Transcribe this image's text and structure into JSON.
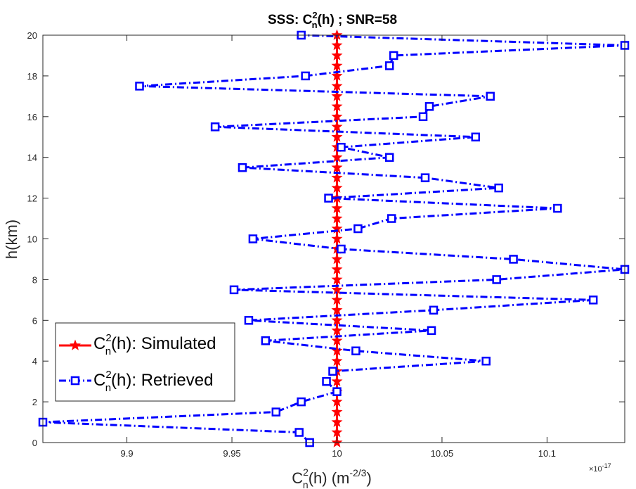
{
  "chart_data": {
    "type": "line",
    "title": {
      "prefix": "SSS: C",
      "sup": "2",
      "sub": "n",
      "suffix": "(h)  ; SNR=58"
    },
    "xlabel": {
      "base": "C",
      "sup": "2",
      "sub": "n",
      "rest": "(h) (m",
      "exp": "-2/3",
      "close": ")"
    },
    "ylabel": "h(km)",
    "x_multiplier": {
      "prefix": "×10",
      "exp": "-17"
    },
    "xlim": [
      9.86,
      10.137
    ],
    "ylim": [
      0,
      20
    ],
    "x_ticks": [
      "9.9",
      "9.95",
      "10",
      "10.05",
      "10.1"
    ],
    "x_tick_values": [
      9.9,
      9.95,
      10,
      10.05,
      10.1
    ],
    "y_ticks": [
      "0",
      "2",
      "4",
      "6",
      "8",
      "10",
      "12",
      "14",
      "16",
      "18",
      "20"
    ],
    "y_tick_values": [
      0,
      2,
      4,
      6,
      8,
      10,
      12,
      14,
      16,
      18,
      20
    ],
    "h": [
      0,
      0.5,
      1,
      1.5,
      2,
      2.5,
      3,
      3.5,
      4,
      4.5,
      5,
      5.5,
      6,
      6.5,
      7,
      7.5,
      8,
      8.5,
      9,
      9.5,
      10,
      10.5,
      11,
      11.5,
      12,
      12.5,
      13,
      13.5,
      14,
      14.5,
      15,
      15.5,
      16,
      16.5,
      17,
      17.5,
      18,
      18.5,
      19,
      19.5,
      20
    ],
    "grid": false,
    "legend_position": "bottom-left",
    "series": [
      {
        "name": "Simulated",
        "color": "#ff0000",
        "marker": "star",
        "line": "solid",
        "x": [
          10,
          10,
          10,
          10,
          10,
          10,
          10,
          10,
          10,
          10,
          10,
          10,
          10,
          10,
          10,
          10,
          10,
          10,
          10,
          10,
          10,
          10,
          10,
          10,
          10,
          10,
          10,
          10,
          10,
          10,
          10,
          10,
          10,
          10,
          10,
          10,
          10,
          10,
          10,
          10,
          10
        ]
      },
      {
        "name": "Retrieved",
        "color": "#0000ff",
        "marker": "square",
        "line": "dash-dot",
        "x": [
          9.987,
          9.982,
          9.86,
          9.971,
          9.983,
          10.0,
          9.995,
          9.998,
          10.071,
          10.009,
          9.966,
          10.045,
          9.958,
          10.046,
          10.122,
          9.951,
          10.076,
          10.137,
          10.084,
          10.002,
          9.96,
          10.01,
          10.026,
          10.105,
          9.996,
          10.077,
          10.042,
          9.955,
          10.025,
          10.002,
          10.066,
          9.942,
          10.041,
          10.044,
          10.073,
          9.906,
          9.985,
          10.025,
          10.027,
          10.137,
          9.983
        ]
      }
    ],
    "legend": [
      {
        "base": "C",
        "sup": "2",
        "sub": "n",
        "text": "(h): Simulated"
      },
      {
        "base": "C",
        "sup": "2",
        "sub": "n",
        "text": "(h): Retrieved"
      }
    ]
  }
}
